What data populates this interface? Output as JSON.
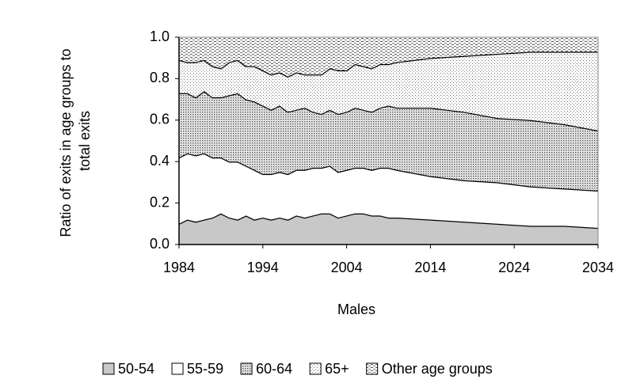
{
  "chart_data": {
    "type": "stacked_area",
    "y_label": [
      "Ratio of exits in age groups to",
      "total exits"
    ],
    "x_label": "Males",
    "x": [
      1984,
      1985,
      1986,
      1987,
      1988,
      1989,
      1990,
      1991,
      1992,
      1993,
      1994,
      1995,
      1996,
      1997,
      1998,
      1999,
      2000,
      2001,
      2002,
      2003,
      2004,
      2005,
      2006,
      2007,
      2008,
      2009,
      2010,
      2014,
      2018,
      2022,
      2026,
      2030,
      2034
    ],
    "series": [
      {
        "name": "50-54",
        "color": "#c8c8c8",
        "values": [
          0.1,
          0.12,
          0.11,
          0.12,
          0.13,
          0.15,
          0.13,
          0.12,
          0.14,
          0.12,
          0.13,
          0.12,
          0.13,
          0.12,
          0.14,
          0.13,
          0.14,
          0.15,
          0.15,
          0.13,
          0.14,
          0.15,
          0.15,
          0.14,
          0.14,
          0.13,
          0.13,
          0.12,
          0.11,
          0.1,
          0.09,
          0.09,
          0.08
        ]
      },
      {
        "name": "55-59",
        "color": "#ffffff",
        "values": [
          0.32,
          0.32,
          0.32,
          0.32,
          0.29,
          0.27,
          0.27,
          0.28,
          0.24,
          0.24,
          0.21,
          0.22,
          0.22,
          0.22,
          0.22,
          0.23,
          0.23,
          0.22,
          0.23,
          0.22,
          0.22,
          0.22,
          0.22,
          0.22,
          0.23,
          0.24,
          0.23,
          0.21,
          0.2,
          0.2,
          0.19,
          0.18,
          0.18
        ]
      },
      {
        "name": "60-64",
        "color": "#bdbdbd",
        "values": [
          0.31,
          0.29,
          0.28,
          0.3,
          0.29,
          0.29,
          0.32,
          0.33,
          0.32,
          0.33,
          0.33,
          0.31,
          0.32,
          0.3,
          0.29,
          0.3,
          0.27,
          0.26,
          0.27,
          0.28,
          0.28,
          0.29,
          0.28,
          0.28,
          0.29,
          0.3,
          0.3,
          0.33,
          0.33,
          0.31,
          0.32,
          0.31,
          0.29
        ]
      },
      {
        "name": "65+",
        "color": "#ececec",
        "values": [
          0.16,
          0.15,
          0.17,
          0.15,
          0.15,
          0.14,
          0.16,
          0.16,
          0.16,
          0.17,
          0.17,
          0.17,
          0.16,
          0.17,
          0.18,
          0.16,
          0.18,
          0.19,
          0.2,
          0.21,
          0.2,
          0.21,
          0.21,
          0.21,
          0.21,
          0.2,
          0.22,
          0.24,
          0.27,
          0.31,
          0.33,
          0.35,
          0.38
        ]
      },
      {
        "name": "Other age groups",
        "color": "#d6d6d6",
        "values": [
          0.11,
          0.12,
          0.12,
          0.11,
          0.14,
          0.15,
          0.12,
          0.11,
          0.14,
          0.14,
          0.16,
          0.18,
          0.17,
          0.19,
          0.17,
          0.18,
          0.18,
          0.18,
          0.15,
          0.16,
          0.16,
          0.13,
          0.14,
          0.15,
          0.13,
          0.13,
          0.12,
          0.1,
          0.09,
          0.08,
          0.07,
          0.07,
          0.07
        ]
      }
    ],
    "xlim": [
      1984,
      2034
    ],
    "xticks": [
      1984,
      1994,
      2004,
      2014,
      2024,
      2034
    ],
    "ylim": [
      0,
      1
    ],
    "yticks": [
      {
        "value": 0,
        "label": "0.0"
      },
      {
        "value": 0.2,
        "label": "0.2"
      },
      {
        "value": 0.4,
        "label": "0.4"
      },
      {
        "value": 0.6,
        "label": "0.6"
      },
      {
        "value": 0.8,
        "label": "0.8"
      },
      {
        "value": 1,
        "label": "1.0"
      }
    ],
    "legend": "bottom"
  }
}
